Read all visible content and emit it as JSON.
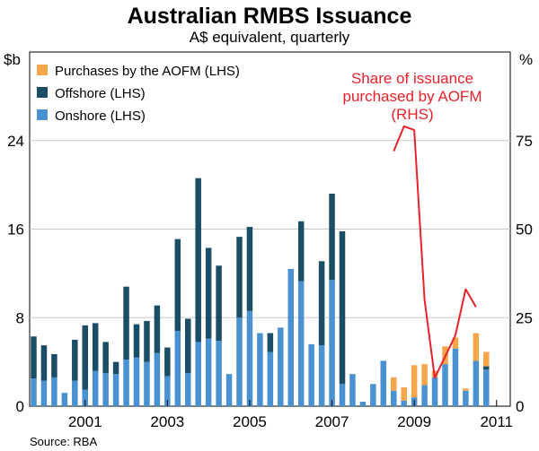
{
  "title": "Australian RMBS Issuance",
  "subtitle": "A$ equivalent, quarterly",
  "left_unit": "$b",
  "right_unit": "%",
  "source": "Source: RBA",
  "annotation_lines": [
    "Share of issuance",
    "purchased by AOFM",
    "(RHS)"
  ],
  "colors": {
    "onshore": "#4a91d2",
    "offshore": "#1b4e66",
    "aofm": "#f5a54a",
    "share_line": "#e8212b",
    "grid": "#c8c8c8"
  },
  "chart_data": {
    "type": "bar",
    "stacked": true,
    "x_ticks": [
      "2001",
      "2003",
      "2005",
      "2007",
      "2009",
      "2011"
    ],
    "ylim_left": [
      0,
      32
    ],
    "yticks_left": [
      "0",
      "8",
      "16",
      "24"
    ],
    "ylim_right": [
      0,
      100
    ],
    "yticks_right": [
      "0",
      "25",
      "50",
      "75"
    ],
    "grid": true,
    "legend_position": "top-left",
    "legend": [
      "Purchases by the AOFM (LHS)",
      "Offshore (LHS)",
      "Onshore (LHS)"
    ],
    "quarters": [
      "1999-Q4",
      "2000-Q1",
      "2000-Q2",
      "2000-Q3",
      "2000-Q4",
      "2001-Q1",
      "2001-Q2",
      "2001-Q3",
      "2001-Q4",
      "2002-Q1",
      "2002-Q2",
      "2002-Q3",
      "2002-Q4",
      "2003-Q1",
      "2003-Q2",
      "2003-Q3",
      "2003-Q4",
      "2004-Q1",
      "2004-Q2",
      "2004-Q3",
      "2004-Q4",
      "2005-Q1",
      "2005-Q2",
      "2005-Q3",
      "2005-Q4",
      "2006-Q1",
      "2006-Q2",
      "2006-Q3",
      "2006-Q4",
      "2007-Q1",
      "2007-Q2",
      "2007-Q3",
      "2007-Q4",
      "2008-Q1",
      "2008-Q2",
      "2008-Q3",
      "2008-Q4",
      "2009-Q1",
      "2009-Q2",
      "2009-Q3",
      "2009-Q4",
      "2010-Q1",
      "2010-Q2",
      "2010-Q3",
      "2010-Q4"
    ],
    "series": [
      {
        "name": "Onshore (LHS)",
        "values": [
          2.5,
          2.3,
          2.6,
          1.2,
          2.3,
          1.5,
          3.2,
          3.0,
          2.9,
          4.2,
          4.4,
          4.0,
          4.8,
          2.7,
          6.8,
          3.0,
          5.8,
          6.1,
          5.9,
          2.9,
          8.0,
          8.6,
          6.6,
          4.9,
          7.1,
          12.4,
          11.3,
          5.6,
          5.5,
          11.4,
          2.0,
          2.9,
          0.4,
          2.0,
          4.1,
          1.4,
          0.5,
          0.8,
          1.9,
          2.6,
          3.8,
          5.2,
          1.4,
          4.1,
          3.3
        ]
      },
      {
        "name": "Offshore (LHS)",
        "values": [
          3.8,
          3.2,
          2.1,
          0.0,
          3.7,
          5.8,
          4.3,
          2.8,
          1.1,
          6.6,
          3.0,
          3.7,
          4.3,
          2.6,
          8.3,
          4.9,
          14.8,
          8.2,
          6.8,
          0.0,
          7.3,
          7.6,
          0.0,
          1.7,
          0.0,
          0.0,
          5.4,
          0.0,
          7.6,
          7.8,
          13.8,
          0.0,
          0.0,
          0.0,
          0.0,
          0.0,
          0.0,
          0.0,
          0.0,
          0.0,
          0.0,
          0.0,
          0.0,
          0.0,
          0.3
        ]
      },
      {
        "name": "Purchases by the AOFM (LHS)",
        "values": [
          0,
          0,
          0,
          0,
          0,
          0,
          0,
          0,
          0,
          0,
          0,
          0,
          0,
          0,
          0,
          0,
          0,
          0,
          0,
          0,
          0,
          0,
          0,
          0,
          0,
          0,
          0,
          0,
          0,
          0,
          0,
          0,
          0,
          0,
          0,
          1.2,
          1.2,
          2.9,
          1.9,
          0.6,
          1.6,
          1.0,
          0.2,
          2.5,
          1.3
        ]
      }
    ],
    "aofm_share_rhs": {
      "name": "Share of issuance purchased by AOFM (RHS)",
      "quarters": [
        "2008-Q3",
        "2008-Q4",
        "2009-Q1",
        "2009-Q2",
        "2009-Q3",
        "2009-Q4",
        "2010-Q1",
        "2010-Q2",
        "2010-Q3"
      ],
      "values": [
        72,
        79,
        78,
        30,
        8,
        14,
        20,
        33,
        28
      ]
    }
  }
}
